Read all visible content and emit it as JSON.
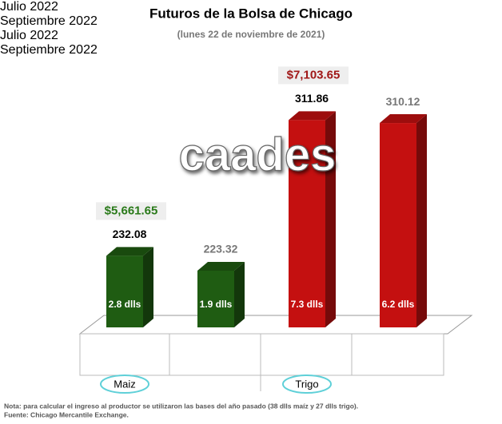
{
  "chart_data": {
    "type": "bar3d",
    "title": "Futuros de la Bolsa de Chicago",
    "subtitle": "(lunes 22 de noviembre de 2021)",
    "watermark": "caades",
    "categories": [
      "Julio 2022",
      "Septiembre 2022",
      "Julio 2022",
      "Septiembre 2022"
    ],
    "values": [
      232.08,
      223.32,
      311.86,
      310.12
    ],
    "colors": [
      "#1f5c12",
      "#1f5c12",
      "#c41010",
      "#c41010"
    ],
    "value_label_colors": [
      "#000000",
      "#777777",
      "#000000",
      "#777777"
    ],
    "bar_labels": [
      "2.8 dlls",
      "1.9 dlls",
      "7.3 dlls",
      "6.2 dlls"
    ],
    "groups": [
      {
        "name": "Maiz",
        "categories": [
          0,
          1
        ]
      },
      {
        "name": "Trigo",
        "categories": [
          2,
          3
        ]
      }
    ],
    "annotations": [
      {
        "text": "$5,661.65",
        "category": 0,
        "color": "#2a7a1a"
      },
      {
        "text": "$7,103.65",
        "category": 2,
        "color": "#a01818"
      }
    ],
    "ylim": [
      190,
      320
    ],
    "notes": [
      "Nota: para calcular el ingreso al productor se utilizaron las bases del año pasado (38 dlls maíz y 27 dlls trigo).",
      "Fuente: Chicago Mercantile Exchange."
    ]
  }
}
